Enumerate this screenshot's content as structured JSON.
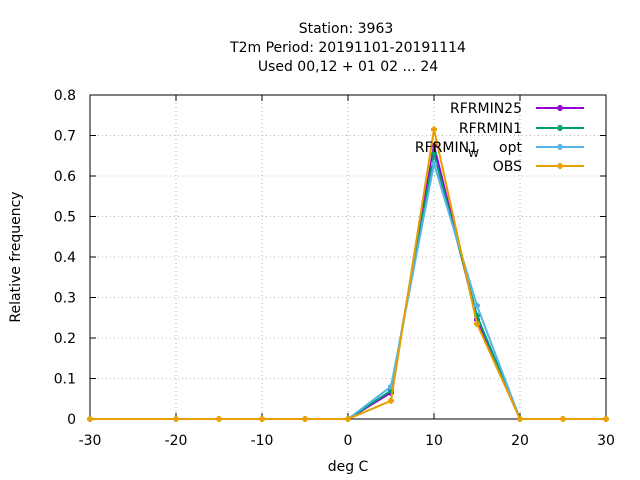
{
  "chart_data": {
    "type": "line",
    "title_lines": [
      "Station:     3963",
      "T2m  Period: 20191101-20191114",
      "Used  00,12  + 01 02 ... 24"
    ],
    "xlabel": "deg C",
    "ylabel": "Relative frequency",
    "xlim": [
      -30,
      30
    ],
    "ylim": [
      0,
      0.8
    ],
    "x_ticks": [
      -30,
      -20,
      -10,
      0,
      10,
      20,
      30
    ],
    "y_ticks": [
      0,
      0.1,
      0.2,
      0.3,
      0.4,
      0.5,
      0.6,
      0.7,
      0.8
    ],
    "grid": true,
    "legend_position": "top-right",
    "x": [
      -30,
      -20,
      -15,
      -10,
      -5,
      0,
      5,
      10,
      15,
      20,
      25,
      30
    ],
    "series": [
      {
        "name": "RFRMIN25",
        "color": "#9400d3",
        "values": [
          0,
          0,
          0,
          0,
          0,
          0,
          0.065,
          0.675,
          0.245,
          0,
          0,
          0
        ]
      },
      {
        "name": "RFRMIN1",
        "color": "#009e73",
        "values": [
          0,
          0,
          0,
          0,
          0,
          0,
          0.07,
          0.655,
          0.255,
          0,
          0,
          0
        ]
      },
      {
        "name_main": "RFRMIN1",
        "name_sub": "W",
        "name_suffix": " opt",
        "color": "#56b4e9",
        "values": [
          0,
          0,
          0,
          0,
          0,
          0,
          0.08,
          0.63,
          0.28,
          0,
          0,
          0
        ]
      },
      {
        "name": "OBS",
        "color": "#e69f00",
        "values": [
          0,
          0,
          0,
          0,
          0,
          0,
          0.045,
          0.715,
          0.235,
          0,
          0,
          0
        ]
      }
    ]
  }
}
